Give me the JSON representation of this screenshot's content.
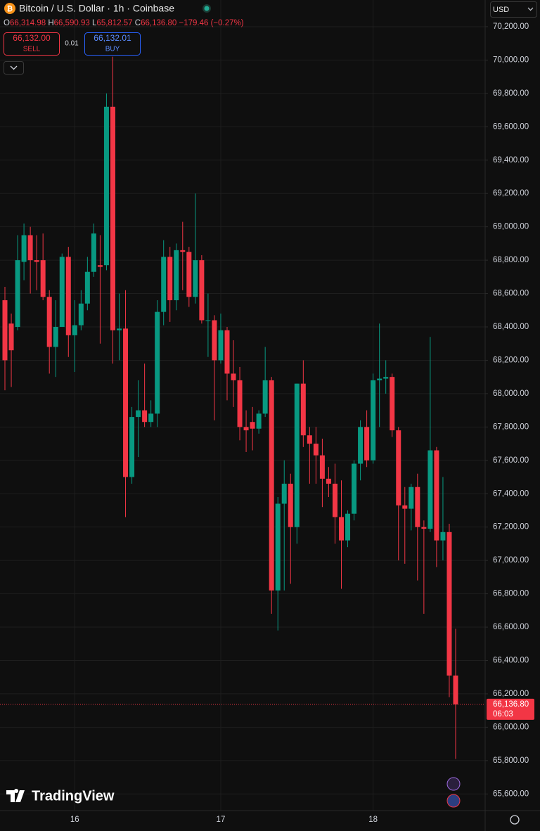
{
  "header": {
    "title": "Bitcoin / U.S. Dollar · 1h · Coinbase",
    "ohlc": [
      {
        "label": "O",
        "value": "66,314.98"
      },
      {
        "label": "H",
        "value": "66,590.93"
      },
      {
        "label": "L",
        "value": "65,812.57"
      },
      {
        "label": "C",
        "value": "66,136.80"
      }
    ],
    "change": "−179.46 (−0.27%)",
    "sell_price": "66,132.00",
    "sell": "SELL",
    "spread": "0.01",
    "buy_price": "66,132.01",
    "buy": "BUY",
    "currency": "USD",
    "brand": "TradingView"
  },
  "chart_data": {
    "type": "candlestick",
    "up_color": "#089981",
    "down_color": "#f23645",
    "grid": true,
    "categories": [
      null,
      null,
      null,
      null,
      null,
      null,
      null,
      null,
      null,
      null,
      null,
      "16",
      null,
      null,
      null,
      null,
      null,
      null,
      null,
      null,
      null,
      null,
      null,
      null,
      null,
      null,
      null,
      null,
      null,
      null,
      null,
      null,
      null,
      null,
      "17",
      null,
      null,
      null,
      null,
      null,
      null,
      null,
      null,
      null,
      null,
      null,
      null,
      null,
      null,
      null,
      null,
      null,
      null,
      null,
      null,
      null,
      null,
      null,
      "18",
      null,
      null,
      null,
      null,
      null,
      null,
      null,
      null,
      null,
      null,
      null,
      null,
      null
    ],
    "open": [
      68560,
      68420,
      68400,
      68790,
      68950,
      68800,
      68800,
      68580,
      68280,
      68400,
      68820,
      68350,
      68410,
      68540,
      68730,
      68770,
      68770,
      69720,
      68380,
      68390,
      67500,
      67860,
      67900,
      67830,
      67880,
      68490,
      68820,
      68560,
      68860,
      68850,
      68580,
      68800,
      68440,
      68440,
      68200,
      68380,
      68120,
      68080,
      67800,
      67830,
      67790,
      67880,
      68080,
      66820,
      67340,
      67460,
      67200,
      68060,
      67750,
      67700,
      67630,
      67490,
      67460,
      67260,
      67120,
      67280,
      67580,
      67800,
      67600,
      68080,
      68090,
      68100,
      67780,
      67330,
      67310,
      67440,
      67200,
      67190,
      67660,
      67120,
      67170,
      66310
    ],
    "high": [
      68640,
      68480,
      68950,
      69020,
      69000,
      68950,
      68960,
      68620,
      68560,
      68840,
      68880,
      68560,
      68620,
      68820,
      69020,
      68950,
      69800,
      70020,
      68600,
      68620,
      67920,
      68080,
      68180,
      67960,
      68560,
      68920,
      68880,
      68900,
      69030,
      68880,
      69200,
      68830,
      68600,
      68470,
      68480,
      68400,
      68320,
      68160,
      67900,
      67920,
      67900,
      68280,
      68100,
      67380,
      67600,
      67520,
      68060,
      68200,
      67800,
      67800,
      67730,
      67560,
      67580,
      67480,
      67300,
      67600,
      67840,
      67900,
      68120,
      68420,
      68200,
      68120,
      67800,
      67440,
      67460,
      67520,
      67240,
      68340,
      67680,
      67500,
      67220,
      66590
    ],
    "low": [
      68020,
      68040,
      68380,
      68680,
      68600,
      68620,
      68560,
      68120,
      68100,
      68400,
      68220,
      68130,
      68380,
      68500,
      68700,
      68300,
      68740,
      68180,
      68200,
      67260,
      67460,
      67620,
      67800,
      67800,
      67800,
      68410,
      68430,
      68500,
      68620,
      68520,
      68540,
      68420,
      68220,
      67840,
      68180,
      67960,
      67920,
      67720,
      67650,
      67660,
      67760,
      67860,
      66680,
      66580,
      66820,
      66860,
      67100,
      67680,
      67460,
      67460,
      67320,
      67380,
      67100,
      66830,
      67080,
      67240,
      67480,
      67560,
      67580,
      67800,
      68000,
      67740,
      67000,
      66980,
      67180,
      66880,
      66680,
      67170,
      66960,
      67000,
      66180,
      65810
    ],
    "close": [
      68200,
      68260,
      68800,
      68950,
      68800,
      68790,
      68580,
      68280,
      68400,
      68820,
      68350,
      68410,
      68540,
      68730,
      68960,
      68760,
      69720,
      68380,
      68390,
      67500,
      67860,
      67900,
      67830,
      67880,
      68490,
      68820,
      68560,
      68860,
      68850,
      68580,
      68800,
      68440,
      68440,
      68200,
      68380,
      68120,
      68080,
      67800,
      67780,
      67790,
      67880,
      68080,
      66820,
      67340,
      67460,
      67200,
      68060,
      67750,
      67700,
      67630,
      67490,
      67460,
      67260,
      67120,
      67280,
      67580,
      67800,
      67600,
      68080,
      68090,
      68100,
      67780,
      67330,
      67310,
      67440,
      67200,
      67190,
      67660,
      67120,
      67170,
      66310,
      66136.8
    ],
    "ylim": [
      65500,
      70360
    ],
    "yticks": [
      {
        "value": 65600,
        "label": "65,600.00"
      },
      {
        "value": 65800,
        "label": "65,800.00"
      },
      {
        "value": 66000,
        "label": "66,000.00"
      },
      {
        "value": 66200,
        "label": "66,200.00"
      },
      {
        "value": 66400,
        "label": "66,400.00"
      },
      {
        "value": 66600,
        "label": "66,600.00"
      },
      {
        "value": 66800,
        "label": "66,800.00"
      },
      {
        "value": 67000,
        "label": "67,000.00"
      },
      {
        "value": 67200,
        "label": "67,200.00"
      },
      {
        "value": 67400,
        "label": "67,400.00"
      },
      {
        "value": 67600,
        "label": "67,600.00"
      },
      {
        "value": 67800,
        "label": "67,800.00"
      },
      {
        "value": 68000,
        "label": "68,000.00"
      },
      {
        "value": 68200,
        "label": "68,200.00"
      },
      {
        "value": 68400,
        "label": "68,400.00"
      },
      {
        "value": 68600,
        "label": "68,600.00"
      },
      {
        "value": 68800,
        "label": "68,800.00"
      },
      {
        "value": 69000,
        "label": "69,000.00"
      },
      {
        "value": 69200,
        "label": "69,200.00"
      },
      {
        "value": 69400,
        "label": "69,400.00"
      },
      {
        "value": 69600,
        "label": "69,600.00"
      },
      {
        "value": 69800,
        "label": "69,800.00"
      },
      {
        "value": 70000,
        "label": "70,000.00"
      },
      {
        "value": 70200,
        "label": "70,200.00"
      }
    ],
    "last_price": {
      "value": 66136.8,
      "label": "66,136.80"
    },
    "countdown": "06:03"
  }
}
